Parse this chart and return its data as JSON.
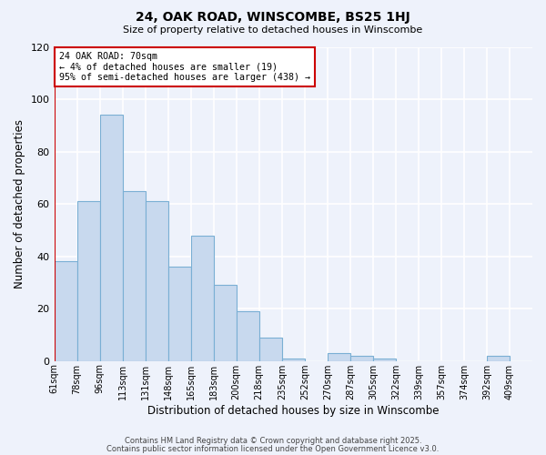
{
  "title": "24, OAK ROAD, WINSCOMBE, BS25 1HJ",
  "subtitle": "Size of property relative to detached houses in Winscombe",
  "xlabel": "Distribution of detached houses by size in Winscombe",
  "ylabel": "Number of detached properties",
  "bar_color": "#c8d9ee",
  "bar_edge_color": "#7aafd4",
  "background_color": "#eef2fb",
  "grid_color": "#ffffff",
  "categories": [
    "61sqm",
    "78sqm",
    "96sqm",
    "113sqm",
    "131sqm",
    "148sqm",
    "165sqm",
    "183sqm",
    "200sqm",
    "218sqm",
    "235sqm",
    "252sqm",
    "270sqm",
    "287sqm",
    "305sqm",
    "322sqm",
    "339sqm",
    "357sqm",
    "374sqm",
    "392sqm",
    "409sqm"
  ],
  "values": [
    38,
    61,
    94,
    65,
    61,
    36,
    48,
    29,
    19,
    9,
    1,
    0,
    3,
    2,
    1,
    0,
    0,
    0,
    0,
    2,
    0
  ],
  "ylim": [
    0,
    120
  ],
  "yticks": [
    0,
    20,
    40,
    60,
    80,
    100,
    120
  ],
  "marker_color": "#cc0000",
  "annotation_title": "24 OAK ROAD: 70sqm",
  "annotation_line1": "← 4% of detached houses are smaller (19)",
  "annotation_line2": "95% of semi-detached houses are larger (438) →",
  "footer_line1": "Contains HM Land Registry data © Crown copyright and database right 2025.",
  "footer_line2": "Contains public sector information licensed under the Open Government Licence v3.0."
}
